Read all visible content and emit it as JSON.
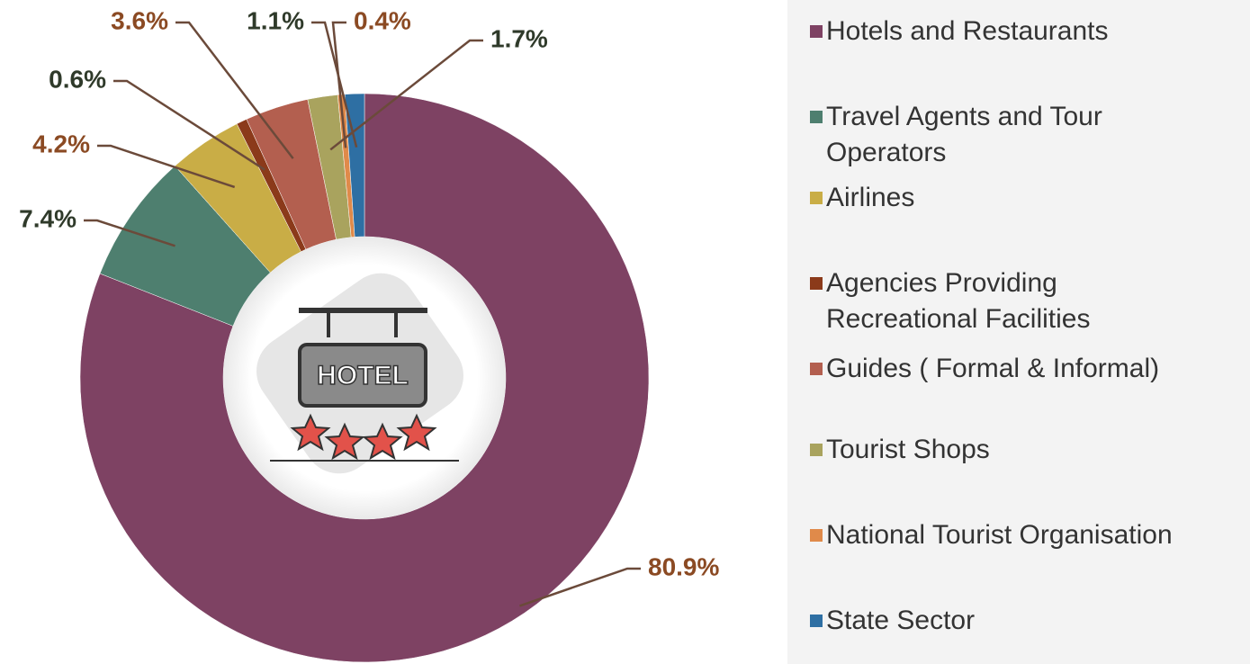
{
  "chart_data": {
    "type": "donut",
    "annotation": "HOTEL",
    "categories": [
      "Hotels and Restaurants",
      "Travel Agents and Tour Operators",
      "Airlines",
      "Agencies Providing Recreational Facilities",
      "Guides  ( Formal & Informal)",
      "Tourist Shops",
      "National Tourist Organisation",
      "State Sector"
    ],
    "values": [
      80.9,
      7.4,
      4.2,
      0.6,
      3.6,
      1.7,
      0.4,
      1.1
    ],
    "value_labels": [
      "80.9%",
      "7.4%",
      "4.2%",
      "0.6%",
      "3.6%",
      "1.7%",
      "0.4%",
      "1.1%"
    ],
    "colors": [
      "#7e4263",
      "#4e7f6f",
      "#c9ad46",
      "#8b3a1a",
      "#b35f4f",
      "#a9a35e",
      "#e08a4a",
      "#2e6fa3"
    ],
    "label_colors": [
      "#8b4a23",
      "#2f3a2a",
      "#8b4a23",
      "#2f3a2a",
      "#8b4a23",
      "#2f3a2a",
      "#8b4a23",
      "#2f3a2a"
    ]
  }
}
